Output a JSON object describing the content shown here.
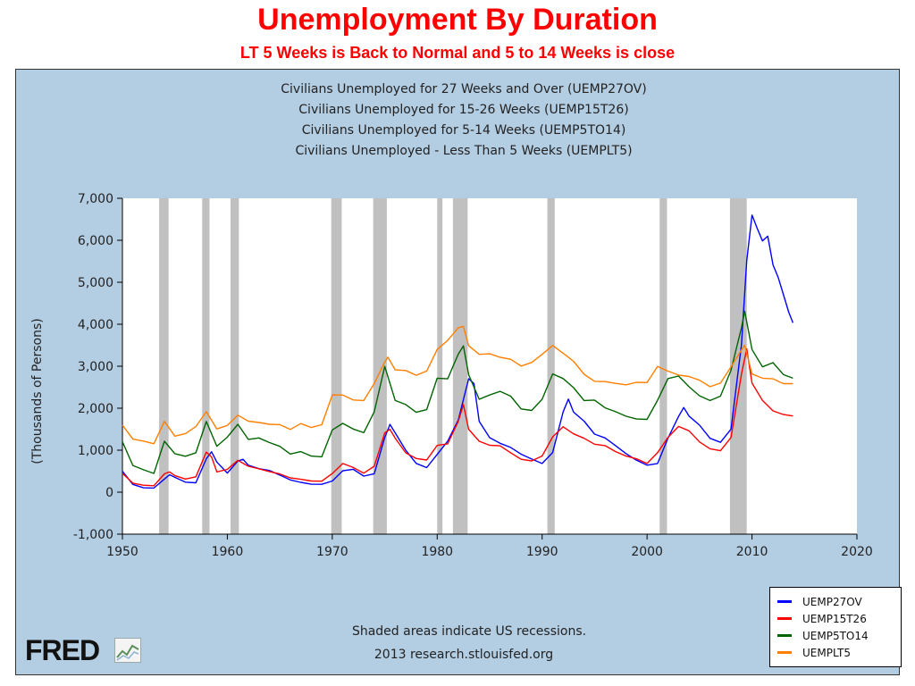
{
  "slide": {
    "title": "Unemployment By Duration",
    "subtitle": "LT 5 Weeks is Back to Normal and 5 to 14 Weeks is close"
  },
  "footer": {
    "recession_note": "Shaded areas indicate US recessions.",
    "source": "2013 research.stlouisfed.org",
    "logo_text": "FRED"
  },
  "colors": {
    "frame_bg": "#b3cde3",
    "plot_bg": "#ffffff",
    "recession": "#c0c0c0",
    "title_red": "#ff0000"
  },
  "chart_data": {
    "type": "line",
    "title_lines": [
      "Civilians Unemployed for 27 Weeks and Over (UEMP27OV)",
      "Civilians Unemployed for 15-26 Weeks (UEMP15T26)",
      "Civilians Unemployed for 5-14 Weeks (UEMP5TO14)",
      "Civilians Unemployed - Less Than 5 Weeks (UEMPLT5)"
    ],
    "ylabel": "(Thousands of Persons)",
    "xlim": [
      1950,
      2020
    ],
    "ylim": [
      -1000,
      7000
    ],
    "xticks": [
      1950,
      1960,
      1970,
      1980,
      1990,
      2000,
      2010,
      2020
    ],
    "yticks": [
      -1000,
      0,
      1000,
      2000,
      3000,
      4000,
      5000,
      6000,
      7000
    ],
    "ytick_labels": [
      "-1,000",
      "0",
      "1,000",
      "2,000",
      "3,000",
      "4,000",
      "5,000",
      "6,000",
      "7,000"
    ],
    "legend_position": "bottom-right",
    "recessions": [
      [
        1953.5,
        1954.4
      ],
      [
        1957.6,
        1958.3
      ],
      [
        1960.3,
        1961.1
      ],
      [
        1969.9,
        1970.9
      ],
      [
        1973.9,
        1975.2
      ],
      [
        1980.0,
        1980.5
      ],
      [
        1981.5,
        1982.9
      ],
      [
        1990.5,
        1991.2
      ],
      [
        2001.2,
        2001.9
      ],
      [
        2007.9,
        2009.5
      ]
    ],
    "series": [
      {
        "name": "UEMP27OV",
        "color": "#0000ff",
        "x": [
          1950,
          1951,
          1952,
          1953,
          1954,
          1954.5,
          1955,
          1956,
          1957,
          1958,
          1958.5,
          1959,
          1960,
          1961,
          1961.5,
          1962,
          1963,
          1964,
          1965,
          1966,
          1967,
          1968,
          1969,
          1970,
          1971,
          1972,
          1973,
          1974,
          1975,
          1975.5,
          1976,
          1977,
          1978,
          1979,
          1980,
          1981,
          1982,
          1983,
          1983.5,
          1984,
          1985,
          1986,
          1987,
          1988,
          1989,
          1990,
          1991,
          1992,
          1992.5,
          1993,
          1994,
          1995,
          1996,
          1997,
          1998,
          1999,
          2000,
          2001,
          2002,
          2003,
          2003.5,
          2004,
          2005,
          2006,
          2007,
          2008,
          2009,
          2009.5,
          2010,
          2010.5,
          2011,
          2011.5,
          2012,
          2012.5,
          2013,
          2013.5,
          2013.9
        ],
        "y": [
          500,
          200,
          120,
          100,
          300,
          400,
          350,
          250,
          240,
          800,
          950,
          700,
          450,
          750,
          800,
          650,
          550,
          500,
          400,
          300,
          250,
          200,
          180,
          250,
          500,
          550,
          400,
          450,
          1300,
          1600,
          1400,
          1000,
          700,
          600,
          900,
          1200,
          1700,
          2700,
          2600,
          1700,
          1300,
          1150,
          1050,
          900,
          800,
          700,
          950,
          1900,
          2200,
          1900,
          1700,
          1400,
          1300,
          1100,
          900,
          750,
          650,
          700,
          1300,
          1800,
          2000,
          1800,
          1600,
          1300,
          1200,
          1500,
          3500,
          5500,
          6600,
          6300,
          6000,
          6100,
          5400,
          5100,
          4700,
          4300,
          4050
        ]
      },
      {
        "name": "UEMP15T26",
        "color": "#ff0000",
        "x": [
          1950,
          1951,
          1952,
          1953,
          1954,
          1954.5,
          1955,
          1956,
          1957,
          1958,
          1958.5,
          1959,
          1960,
          1961,
          1962,
          1963,
          1964,
          1965,
          1966,
          1967,
          1968,
          1969,
          1970,
          1971,
          1972,
          1973,
          1974,
          1975,
          1975.5,
          1976,
          1977,
          1978,
          1979,
          1980,
          1981,
          1982,
          1982.5,
          1983,
          1984,
          1985,
          1986,
          1987,
          1988,
          1989,
          1990,
          1991,
          1992,
          1993,
          1994,
          1995,
          1996,
          1997,
          1998,
          1999,
          2000,
          2001,
          2002,
          2003,
          2004,
          2005,
          2006,
          2007,
          2008,
          2009,
          2009.5,
          2010,
          2011,
          2012,
          2013,
          2013.9
        ],
        "y": [
          450,
          200,
          150,
          150,
          450,
          500,
          400,
          300,
          350,
          950,
          850,
          500,
          550,
          750,
          600,
          550,
          500,
          450,
          350,
          300,
          250,
          250,
          450,
          700,
          600,
          450,
          600,
          1400,
          1500,
          1300,
          950,
          800,
          750,
          1100,
          1150,
          1700,
          2100,
          1500,
          1200,
          1100,
          1100,
          950,
          800,
          750,
          850,
          1300,
          1550,
          1400,
          1300,
          1150,
          1100,
          950,
          850,
          800,
          700,
          950,
          1300,
          1550,
          1450,
          1200,
          1050,
          1000,
          1300,
          2800,
          3400,
          2600,
          2200,
          1950,
          1850,
          1800
        ]
      },
      {
        "name": "UEMP5TO14",
        "color": "#006400",
        "x": [
          1950,
          1951,
          1952,
          1953,
          1954,
          1955,
          1956,
          1957,
          1958,
          1959,
          1960,
          1961,
          1962,
          1963,
          1964,
          1965,
          1966,
          1967,
          1968,
          1969,
          1970,
          1971,
          1972,
          1973,
          1974,
          1975,
          1976,
          1977,
          1978,
          1979,
          1980,
          1981,
          1982,
          1982.5,
          1983,
          1984,
          1985,
          1986,
          1987,
          1988,
          1989,
          1990,
          1991,
          1992,
          1993,
          1994,
          1995,
          1996,
          1997,
          1998,
          1999,
          2000,
          2001,
          2002,
          2003,
          2004,
          2005,
          2006,
          2007,
          2008,
          2009,
          2009.3,
          2010,
          2011,
          2012,
          2013,
          2013.9
        ],
        "y": [
          1200,
          650,
          550,
          450,
          1200,
          900,
          850,
          950,
          1700,
          1100,
          1300,
          1600,
          1250,
          1300,
          1200,
          1100,
          900,
          950,
          850,
          850,
          1500,
          1650,
          1500,
          1400,
          1900,
          3000,
          2200,
          2100,
          1900,
          1950,
          2700,
          2700,
          3300,
          3500,
          2800,
          2200,
          2300,
          2400,
          2300,
          2000,
          1950,
          2200,
          2800,
          2700,
          2500,
          2200,
          2200,
          2000,
          1900,
          1800,
          1750,
          1750,
          2200,
          2700,
          2750,
          2500,
          2300,
          2200,
          2300,
          2900,
          3900,
          4300,
          3400,
          3000,
          3100,
          2800,
          2700
        ]
      },
      {
        "name": "UEMPLT5",
        "color": "#ff7f00",
        "x": [
          1950,
          1951,
          1952,
          1953,
          1954,
          1955,
          1956,
          1957,
          1958,
          1959,
          1960,
          1961,
          1962,
          1963,
          1964,
          1965,
          1966,
          1967,
          1968,
          1969,
          1970,
          1971,
          1972,
          1973,
          1974,
          1975,
          1975.3,
          1976,
          1977,
          1978,
          1979,
          1980,
          1981,
          1982,
          1982.5,
          1983,
          1984,
          1985,
          1986,
          1987,
          1988,
          1989,
          1990,
          1991,
          1992,
          1993,
          1994,
          1995,
          1996,
          1997,
          1998,
          1999,
          2000,
          2001,
          2002,
          2003,
          2004,
          2005,
          2006,
          2007,
          2008,
          2009,
          2009.3,
          2010,
          2011,
          2012,
          2013,
          2013.9
        ],
        "y": [
          1600,
          1250,
          1200,
          1150,
          1700,
          1350,
          1400,
          1550,
          1900,
          1500,
          1600,
          1850,
          1700,
          1650,
          1600,
          1600,
          1500,
          1650,
          1550,
          1600,
          2300,
          2300,
          2200,
          2200,
          2600,
          3100,
          3200,
          2900,
          2900,
          2800,
          2900,
          3400,
          3600,
          3900,
          3950,
          3500,
          3300,
          3300,
          3200,
          3150,
          3000,
          3100,
          3300,
          3500,
          3300,
          3100,
          2800,
          2650,
          2650,
          2600,
          2550,
          2600,
          2600,
          3000,
          2900,
          2800,
          2750,
          2650,
          2500,
          2600,
          3000,
          3400,
          3500,
          2800,
          2700,
          2700,
          2600,
          2600
        ]
      }
    ]
  }
}
